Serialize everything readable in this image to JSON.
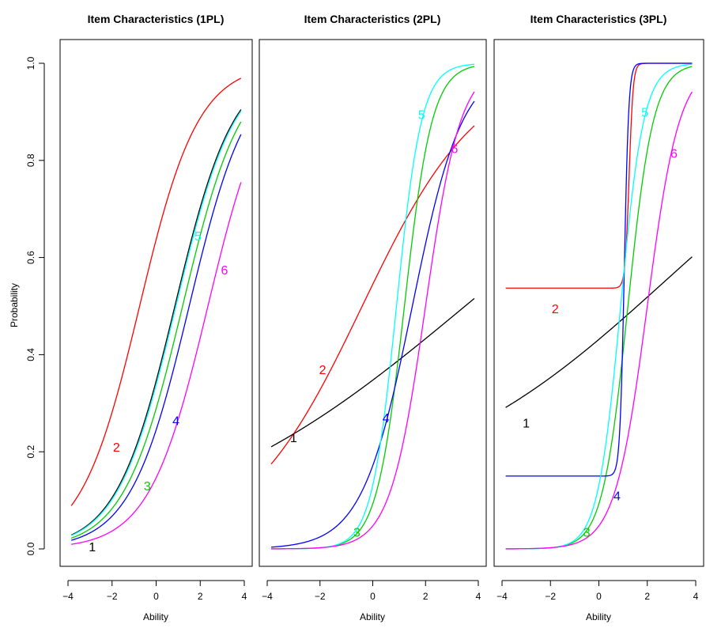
{
  "colors": {
    "1": "#000000",
    "2": "#ff0000",
    "3": "#00cd00",
    "4": "#0000ff",
    "5": "#00ffff",
    "6": "#ff00ff"
  },
  "shared": {
    "ylabel": "Probability",
    "xlabel": "Ability",
    "xlim": [
      -4,
      4
    ],
    "ylim": [
      0,
      1
    ],
    "x_ticks": [
      "−4",
      "−2",
      "0",
      "2",
      "4"
    ],
    "y_ticks": [
      "0.0",
      "0.2",
      "0.4",
      "0.6",
      "0.8",
      "1.0"
    ]
  },
  "chart_data": [
    {
      "type": "line",
      "title": "Item Characteristics (1PL)",
      "xlabel": "Ability",
      "ylabel": "Probability",
      "xlim": [
        -4,
        4
      ],
      "ylim": [
        0,
        1
      ],
      "grid": false,
      "legend": "none",
      "curve_labels": [
        {
          "text": "1",
          "series": "1",
          "x": -2.9,
          "y": 0.005
        },
        {
          "text": "2",
          "series": "2",
          "x": -1.8,
          "y": 0.21
        },
        {
          "text": "3",
          "series": "3",
          "x": -0.4,
          "y": 0.13
        },
        {
          "text": "4",
          "series": "4",
          "x": 0.9,
          "y": 0.265
        },
        {
          "text": "5",
          "series": "5",
          "x": 1.9,
          "y": 0.645
        },
        {
          "text": "6",
          "series": "6",
          "x": 3.1,
          "y": 0.575
        }
      ],
      "series": [
        {
          "item": "1",
          "a": 0.75,
          "b": 0.85,
          "c": 0,
          "x_range": [
            -3.85,
            3.85
          ]
        },
        {
          "item": "2",
          "a": 0.75,
          "b": -0.75,
          "c": 0,
          "x_range": [
            -3.85,
            3.85
          ]
        },
        {
          "item": "3",
          "a": 0.75,
          "b": 1.2,
          "c": 0,
          "x_range": [
            -3.85,
            3.85
          ]
        },
        {
          "item": "4",
          "a": 0.75,
          "b": 1.5,
          "c": 0,
          "x_range": [
            -3.85,
            3.85
          ]
        },
        {
          "item": "5",
          "a": 0.75,
          "b": 0.9,
          "c": 0,
          "x_range": [
            -3.85,
            3.85
          ]
        },
        {
          "item": "6",
          "a": 0.75,
          "b": 2.35,
          "c": 0,
          "x_range": [
            -3.85,
            3.85
          ]
        }
      ]
    },
    {
      "type": "line",
      "title": "Item Characteristics (2PL)",
      "xlabel": "Ability",
      "ylabel": "",
      "xlim": [
        -4,
        4
      ],
      "ylim": [
        0,
        1
      ],
      "grid": false,
      "legend": "none",
      "curve_labels": [
        {
          "text": "1",
          "series": "1",
          "x": -3.0,
          "y": 0.23
        },
        {
          "text": "2",
          "series": "2",
          "x": -1.9,
          "y": 0.37
        },
        {
          "text": "3",
          "series": "3",
          "x": -0.6,
          "y": 0.035
        },
        {
          "text": "4",
          "series": "4",
          "x": 0.5,
          "y": 0.27
        },
        {
          "text": "5",
          "series": "5",
          "x": 1.85,
          "y": 0.895
        },
        {
          "text": "6",
          "series": "6",
          "x": 3.1,
          "y": 0.825
        }
      ],
      "series": [
        {
          "item": "1",
          "a": 0.18,
          "b": 3.5,
          "c": 0,
          "x_range": [
            -3.85,
            3.85
          ]
        },
        {
          "item": "2",
          "a": 0.45,
          "b": -0.4,
          "c": 0,
          "x_range": [
            -3.85,
            3.85
          ]
        },
        {
          "item": "3",
          "a": 1.9,
          "b": 1.2,
          "c": 0,
          "x_range": [
            -3.85,
            3.85
          ]
        },
        {
          "item": "4",
          "a": 1.05,
          "b": 1.5,
          "c": 0,
          "x_range": [
            -3.85,
            3.85
          ]
        },
        {
          "item": "5",
          "a": 2.1,
          "b": 0.9,
          "c": 0,
          "x_range": [
            -3.85,
            3.85
          ]
        },
        {
          "item": "6",
          "a": 1.5,
          "b": 2.0,
          "c": 0,
          "x_range": [
            -3.85,
            3.85
          ]
        }
      ]
    },
    {
      "type": "line",
      "title": "Item Characteristics (3PL)",
      "xlabel": "Ability",
      "ylabel": "",
      "xlim": [
        -4,
        4
      ],
      "ylim": [
        0,
        1
      ],
      "grid": false,
      "legend": "none",
      "curve_labels": [
        {
          "text": "1",
          "series": "1",
          "x": -3.0,
          "y": 0.26
        },
        {
          "text": "2",
          "series": "2",
          "x": -1.8,
          "y": 0.495
        },
        {
          "text": "3",
          "series": "3",
          "x": -0.5,
          "y": 0.035
        },
        {
          "text": "4",
          "series": "4",
          "x": 0.75,
          "y": 0.11
        },
        {
          "text": "5",
          "series": "5",
          "x": 1.9,
          "y": 0.9
        },
        {
          "text": "6",
          "series": "6",
          "x": 3.1,
          "y": 0.815
        }
      ],
      "series": [
        {
          "item": "1",
          "a": 0.2,
          "b": 2.7,
          "c": 0.1,
          "x_range": [
            -3.85,
            3.85
          ]
        },
        {
          "item": "2",
          "a": 12,
          "b": 1.25,
          "c": 0.537,
          "x_range": [
            -3.85,
            3.85
          ]
        },
        {
          "item": "3",
          "a": 1.9,
          "b": 1.2,
          "c": 0,
          "x_range": [
            -3.85,
            3.85
          ]
        },
        {
          "item": "4",
          "a": 11,
          "b": 1.05,
          "c": 0.15,
          "x_range": [
            -3.85,
            3.85
          ]
        },
        {
          "item": "5",
          "a": 2.1,
          "b": 0.9,
          "c": 0,
          "x_range": [
            -3.85,
            3.85
          ]
        },
        {
          "item": "6",
          "a": 1.5,
          "b": 2.0,
          "c": 0,
          "x_range": [
            -3.85,
            3.85
          ]
        }
      ]
    }
  ]
}
